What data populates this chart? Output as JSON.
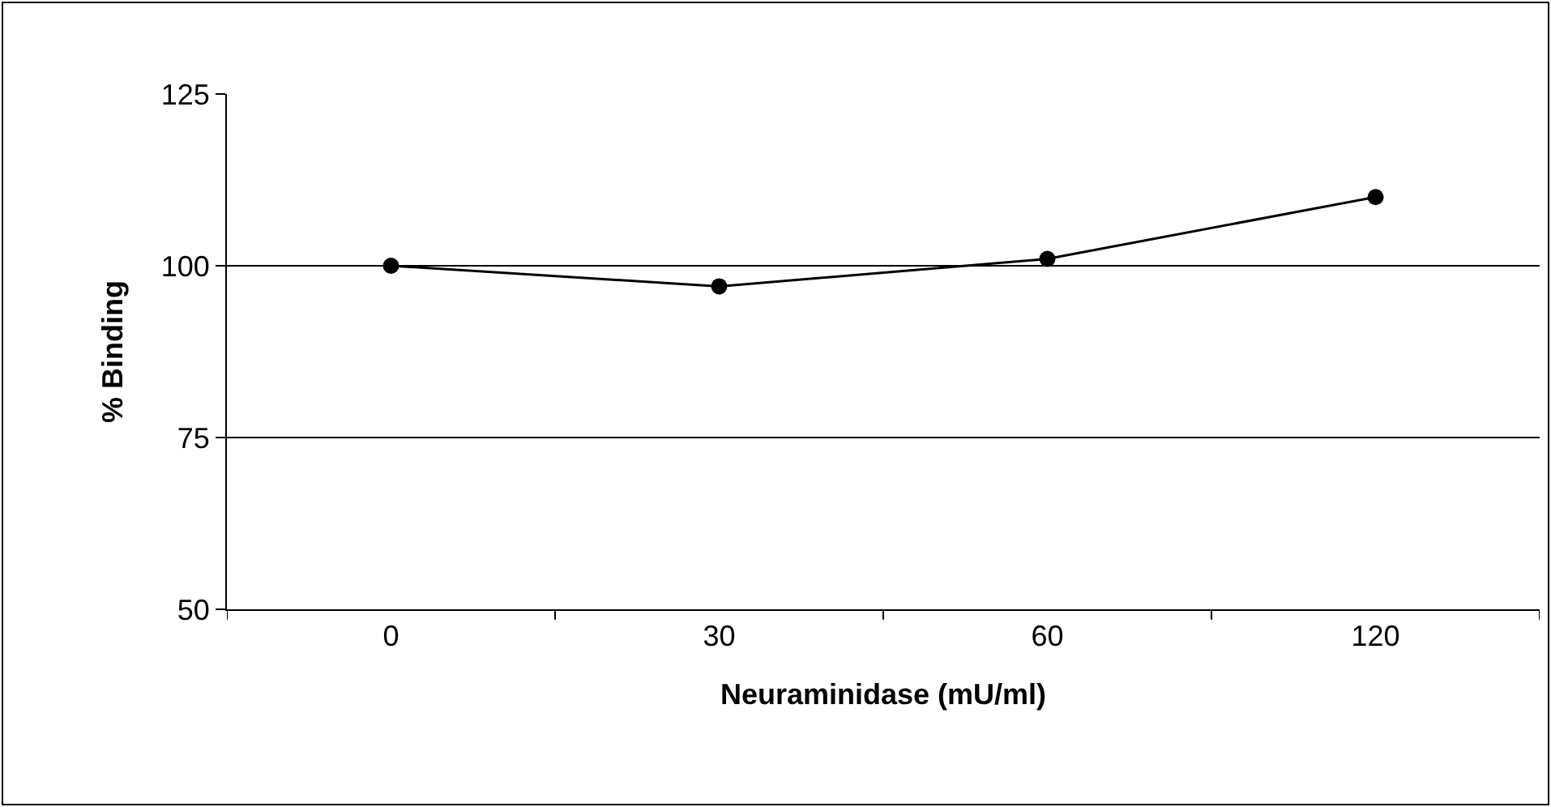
{
  "chart_data": {
    "type": "line",
    "xlabel": "Neuraminidase (mU/ml)",
    "ylabel": "% Binding",
    "categories": [
      "0",
      "30",
      "60",
      "120"
    ],
    "series": [
      {
        "color": "#000000",
        "values": [
          100,
          97,
          101,
          110
        ]
      }
    ],
    "ylim": [
      50,
      125
    ],
    "yticks": [
      50,
      75,
      100,
      125
    ],
    "grid": "y",
    "marker": "circle",
    "line_style": "solid"
  }
}
